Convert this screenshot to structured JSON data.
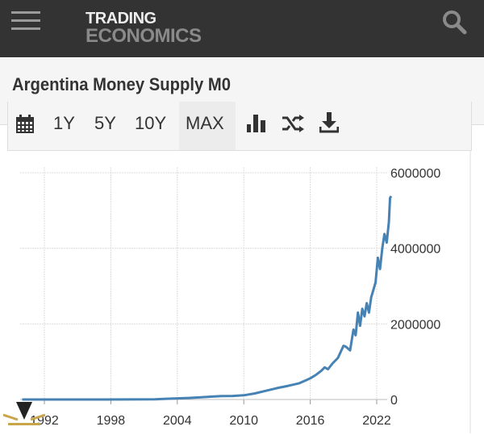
{
  "header": {
    "logo_line1": "TRADING",
    "logo_line2": "ECONOMICS",
    "menu_icon": "hamburger-icon",
    "search_icon": "search-icon"
  },
  "page": {
    "title": "Argentina Money Supply M0"
  },
  "toolbar": {
    "ranges": [
      "1Y",
      "5Y",
      "10Y",
      "MAX"
    ],
    "selected": "MAX",
    "icons": [
      "calendar-icon",
      "bar-chart-icon",
      "shuffle-icon",
      "download-icon"
    ]
  },
  "chart_data": {
    "type": "line",
    "title": "",
    "xlabel": "",
    "ylabel": "",
    "x_ticks": [
      "1992",
      "1998",
      "2004",
      "2010",
      "2016",
      "2022"
    ],
    "y_ticks": [
      "0",
      "2000000",
      "4000000",
      "6000000"
    ],
    "xlim": [
      1990,
      2024
    ],
    "ylim": [
      0,
      6000000
    ],
    "grid": true,
    "y_axis_side": "right",
    "line_color": "#4682b4",
    "series": [
      {
        "x": [
          1990,
          1995,
          2000,
          2002,
          2003,
          2004,
          2005,
          2006,
          2007,
          2008,
          2009,
          2010,
          2011,
          2012,
          2013,
          2014,
          2015,
          2016,
          2016.5,
          2017,
          2017.3,
          2017.6,
          2018,
          2018.5,
          2019,
          2019.2,
          2019.6,
          2019.9,
          2020.1,
          2020.3,
          2020.5,
          2020.7,
          2020.9,
          2021.1,
          2021.3,
          2021.5,
          2021.7,
          2021.9,
          2022.1,
          2022.3,
          2022.5,
          2022.7,
          2022.9,
          2023.1,
          2023.2,
          2023.3
        ],
        "values": [
          0,
          1000,
          3000,
          6000,
          20000,
          30000,
          40000,
          55000,
          75000,
          90000,
          95000,
          110000,
          160000,
          230000,
          300000,
          360000,
          430000,
          560000,
          650000,
          760000,
          850000,
          800000,
          950000,
          1100000,
          1420000,
          1400000,
          1300000,
          1850000,
          1700000,
          2300000,
          1950000,
          2400000,
          2200000,
          2550000,
          2300000,
          2700000,
          2900000,
          3100000,
          3750000,
          3450000,
          4000000,
          4380000,
          4150000,
          4700000,
          5330000,
          5380000
        ]
      }
    ]
  }
}
